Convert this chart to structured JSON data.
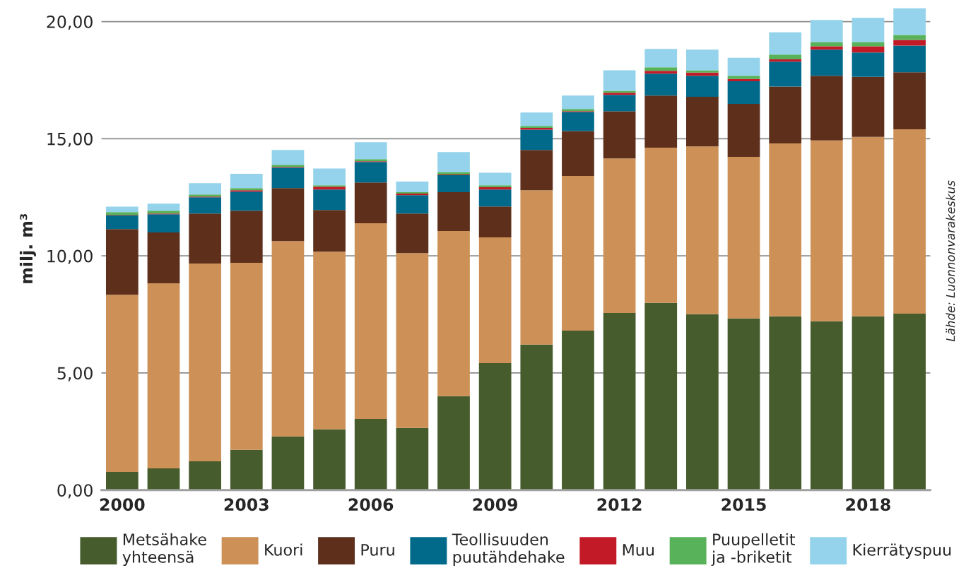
{
  "chart_data": {
    "type": "bar",
    "stacked": true,
    "ylabel": "milj. m³",
    "categories": [
      "2000",
      null,
      null,
      "2003",
      null,
      null,
      "2006",
      null,
      null,
      "2009",
      null,
      null,
      "2012",
      null,
      null,
      "2015",
      null,
      null,
      "2018",
      null
    ],
    "series": [
      {
        "name": "Metsähake\nyhteensä",
        "color": "#465c2d",
        "values": [
          0.78,
          0.93,
          1.23,
          1.72,
          2.29,
          2.59,
          3.04,
          2.65,
          4.01,
          5.42,
          6.21,
          6.81,
          7.56,
          7.99,
          7.51,
          7.33,
          7.42,
          7.21,
          7.42,
          7.53
        ]
      },
      {
        "name": "Kuori",
        "color": "#cd9157",
        "values": [
          7.56,
          7.9,
          8.44,
          7.98,
          8.34,
          7.59,
          8.35,
          7.47,
          7.05,
          5.37,
          6.59,
          6.6,
          6.6,
          6.63,
          7.16,
          6.9,
          7.38,
          7.72,
          7.66,
          7.87
        ]
      },
      {
        "name": "Puru",
        "color": "#5e301c",
        "values": [
          2.8,
          2.17,
          2.14,
          2.23,
          2.26,
          1.78,
          1.74,
          1.69,
          1.66,
          1.32,
          1.72,
          1.92,
          2.01,
          2.22,
          2.12,
          2.26,
          2.43,
          2.76,
          2.56,
          2.44
        ]
      },
      {
        "name": "Teollisuuden\npuutähdehake",
        "color": "#016a8b",
        "values": [
          0.58,
          0.78,
          0.69,
          0.81,
          0.88,
          0.87,
          0.88,
          0.78,
          0.72,
          0.72,
          0.87,
          0.81,
          0.7,
          0.94,
          0.9,
          0.96,
          1.06,
          1.11,
          1.04,
          1.14
        ]
      },
      {
        "name": "Muu",
        "color": "#c31a28",
        "values": [
          0.03,
          0.03,
          0.03,
          0.06,
          0.03,
          0.12,
          0.03,
          0.07,
          0.03,
          0.1,
          0.07,
          0.04,
          0.09,
          0.12,
          0.13,
          0.1,
          0.1,
          0.15,
          0.27,
          0.24
        ]
      },
      {
        "name": "Puupelletit\nja -briketit",
        "color": "#58b25a",
        "values": [
          0.12,
          0.12,
          0.09,
          0.09,
          0.09,
          0.06,
          0.09,
          0.06,
          0.11,
          0.08,
          0.09,
          0.09,
          0.09,
          0.15,
          0.1,
          0.14,
          0.2,
          0.18,
          0.18,
          0.21
        ]
      },
      {
        "name": "Kierrätyspuu",
        "color": "#94d3eb",
        "values": [
          0.23,
          0.3,
          0.48,
          0.61,
          0.63,
          0.72,
          0.72,
          0.45,
          0.85,
          0.54,
          0.57,
          0.57,
          0.87,
          0.78,
          0.88,
          0.77,
          0.95,
          0.94,
          1.03,
          1.14
        ]
      }
    ],
    "ylim": [
      0,
      20.6
    ],
    "yticks": [
      {
        "value": 0,
        "label": "0,00"
      },
      {
        "value": 5,
        "label": "5,00"
      },
      {
        "value": 10,
        "label": "10,00"
      },
      {
        "value": 15,
        "label": "15,00"
      },
      {
        "value": 20,
        "label": "20,00"
      }
    ],
    "grid": "y",
    "legend": "bottom",
    "annotations": [
      "Lähde: Luonnonvarakeskus"
    ]
  }
}
